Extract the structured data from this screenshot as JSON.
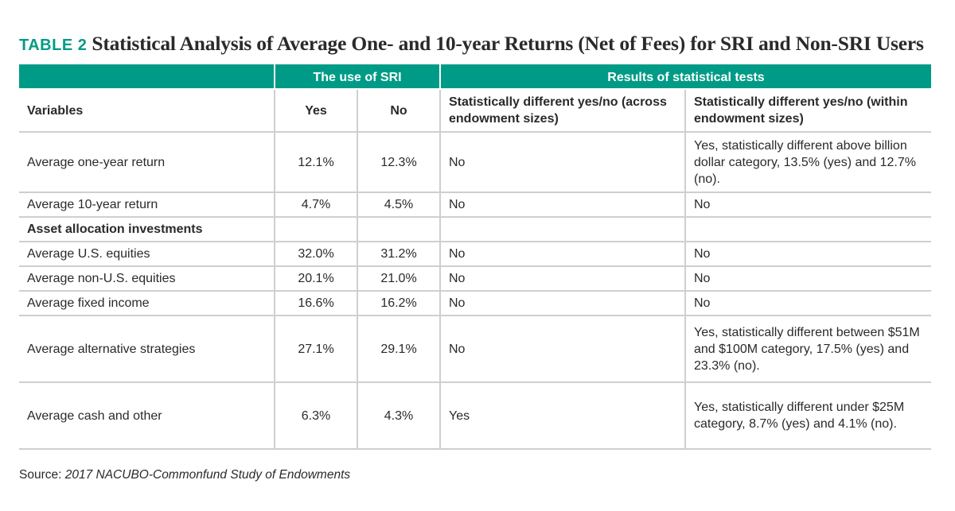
{
  "title": {
    "label": "TABLE 2",
    "text": "Statistical Analysis of Average One- and 10-year Returns (Net of Fees) for SRI and Non-SRI Users"
  },
  "header": {
    "group_sri": "The use of SRI",
    "group_tests": "Results of statistical tests",
    "col_variables": "Variables",
    "col_yes": "Yes",
    "col_no": "No",
    "col_across": "Statistically different yes/no (across endowment sizes)",
    "col_within": "Statistically different yes/no (within endowment sizes)"
  },
  "rows": [
    {
      "variable": "Average one-year return",
      "yes": "12.1%",
      "no": "12.3%",
      "across": "No",
      "within": "Yes, statistically different above billion dollar category, 13.5% (yes) and 12.7% (no)."
    },
    {
      "variable": "Average 10-year return",
      "yes": "4.7%",
      "no": "4.5%",
      "across": "No",
      "within": "No"
    },
    {
      "variable": "Asset allocation investments",
      "yes": "",
      "no": "",
      "across": "",
      "within": ""
    },
    {
      "variable": "Average U.S. equities",
      "yes": "32.0%",
      "no": "31.2%",
      "across": "No",
      "within": "No"
    },
    {
      "variable": "Average non-U.S. equities",
      "yes": "20.1%",
      "no": "21.0%",
      "across": "No",
      "within": "No"
    },
    {
      "variable": "Average fixed income",
      "yes": "16.6%",
      "no": "16.2%",
      "across": "No",
      "within": "No"
    },
    {
      "variable": "Average alternative strategies",
      "yes": "27.1%",
      "no": "29.1%",
      "across": "No",
      "within": "Yes, statistically different between $51M and $100M category, 17.5% (yes) and 23.3% (no)."
    },
    {
      "variable": "Average cash and other",
      "yes": "6.3%",
      "no": "4.3%",
      "across": "Yes",
      "within": "Yes, statistically different under $25M category, 8.7% (yes) and 4.1% (no)."
    }
  ],
  "source": {
    "prefix": "Source: ",
    "citation": "2017 NACUBO-Commonfund Study of Endowments"
  }
}
